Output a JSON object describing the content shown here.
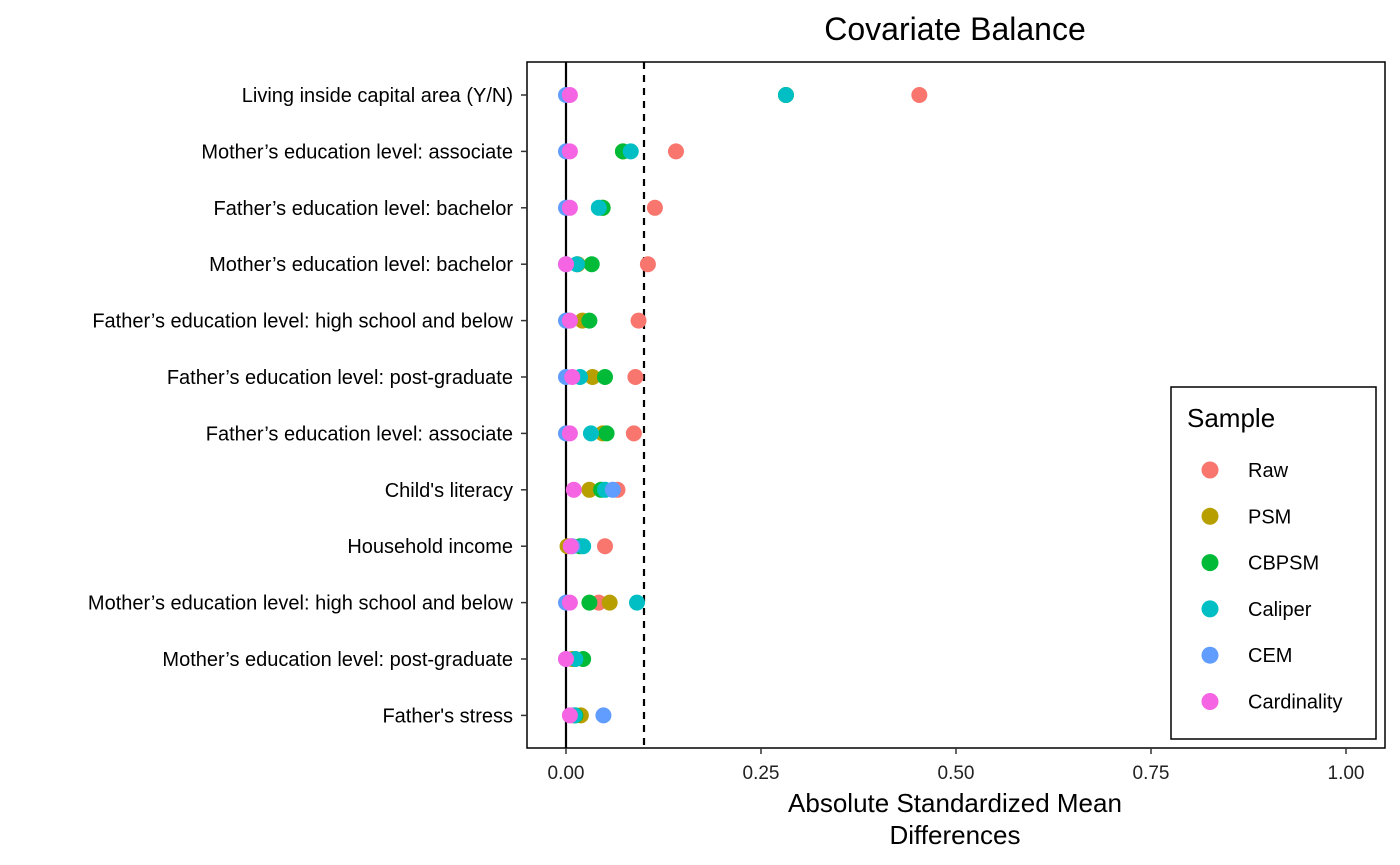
{
  "chart_data": {
    "type": "scatter",
    "title": "Covariate Balance",
    "xlabel_lines": [
      "Absolute Standardized Mean",
      "Differences"
    ],
    "xlim": [
      -0.05,
      1.05
    ],
    "xticks": [
      0.0,
      0.25,
      0.5,
      0.75,
      1.0
    ],
    "xtick_labels": [
      "0.00",
      "0.25",
      "0.50",
      "0.75",
      "1.00"
    ],
    "reference_lines": [
      {
        "x": 0.0,
        "style": "solid"
      },
      {
        "x": 0.1,
        "style": "dashed"
      }
    ],
    "grid": false,
    "legend_title": "Sample",
    "legend_position": "right",
    "categories": [
      "Living inside capital area (Y/N)",
      "Mother’s education level: associate",
      "Father’s education level: bachelor",
      "Mother’s education level: bachelor",
      "Father’s education level: high school and below",
      "Father’s education level: post-graduate",
      "Father’s education level: associate",
      "Child's literacy",
      "Household income",
      "Mother’s education level: high school and below",
      "Mother’s education level: post-graduate",
      "Father's stress"
    ],
    "series": [
      {
        "name": "Raw",
        "color": "#F8766D",
        "values": [
          0.453,
          0.141,
          0.114,
          0.105,
          0.093,
          0.089,
          0.087,
          0.066,
          0.05,
          0.042,
          0.012,
          0.01
        ]
      },
      {
        "name": "PSM",
        "color": "#B79F00",
        "values": [
          0.282,
          0.073,
          0.047,
          0.015,
          0.021,
          0.034,
          0.047,
          0.03,
          0.002,
          0.056,
          0.008,
          0.019
        ]
      },
      {
        "name": "CBPSM",
        "color": "#00BA38",
        "values": [
          0.282,
          0.073,
          0.047,
          0.033,
          0.03,
          0.05,
          0.052,
          0.045,
          0.018,
          0.03,
          0.022,
          0.012
        ]
      },
      {
        "name": "Caliper",
        "color": "#00BFC4",
        "values": [
          0.282,
          0.083,
          0.042,
          0.014,
          0.003,
          0.018,
          0.032,
          0.05,
          0.022,
          0.091,
          0.012,
          0.011
        ]
      },
      {
        "name": "CEM",
        "color": "#619CFF",
        "values": [
          0.0,
          0.0,
          0.0,
          0.0,
          0.0,
          0.0,
          0.0,
          0.06,
          0.008,
          0.0,
          0.0,
          0.048
        ]
      },
      {
        "name": "Cardinality",
        "color": "#F564E3",
        "values": [
          0.005,
          0.005,
          0.005,
          0.0,
          0.005,
          0.008,
          0.005,
          0.01,
          0.006,
          0.005,
          0.0,
          0.005
        ]
      }
    ]
  }
}
